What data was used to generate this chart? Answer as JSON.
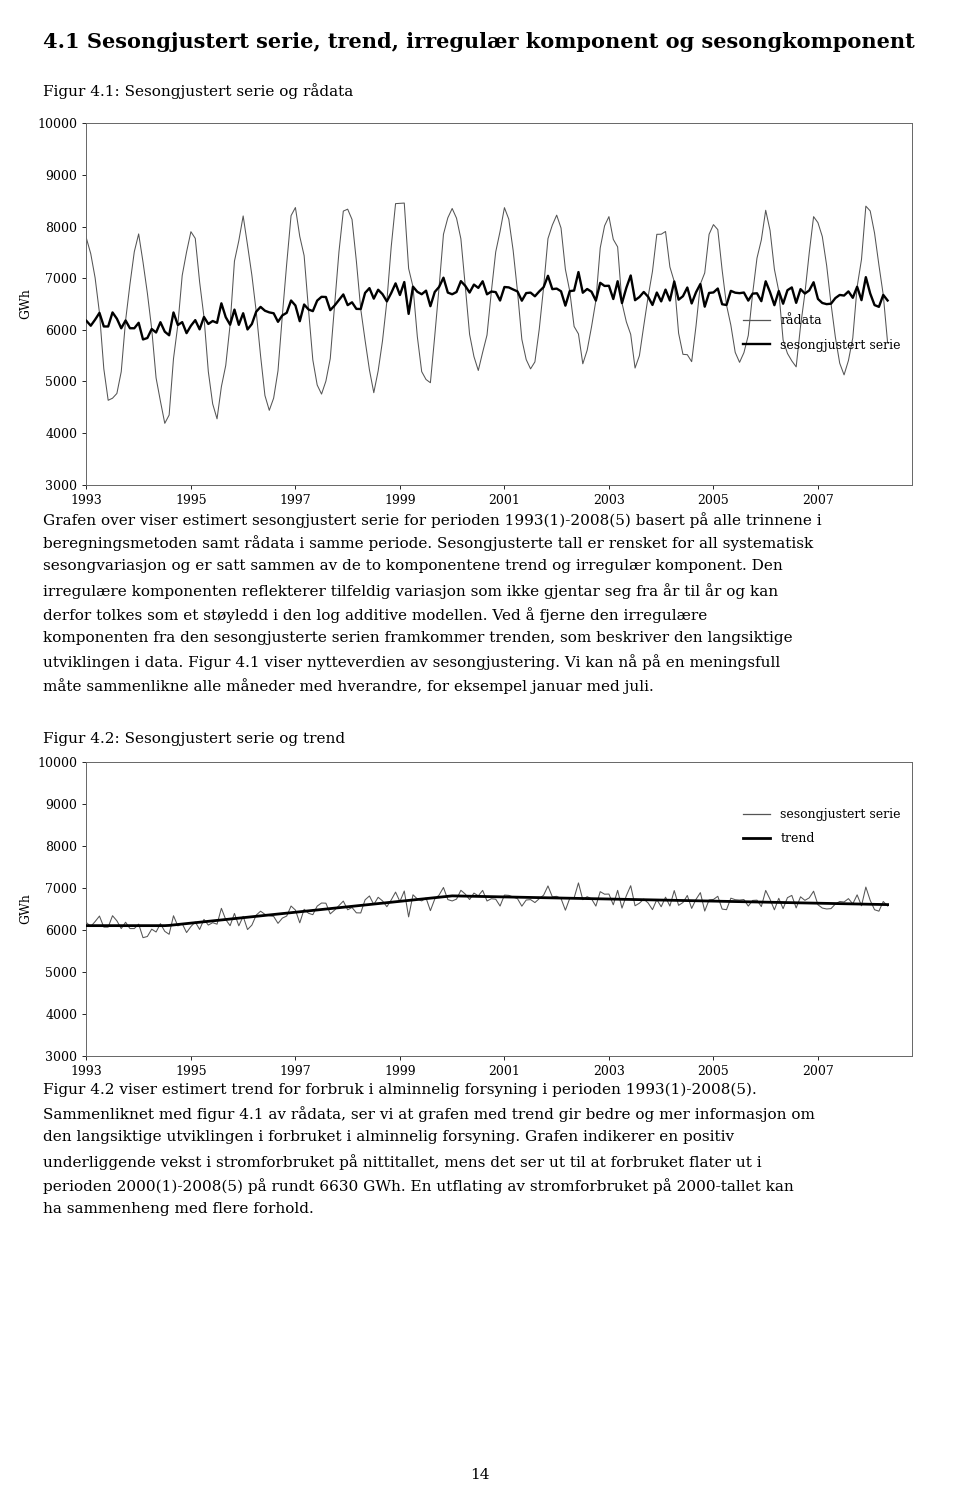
{
  "page_title": "4.1 Sesongjustert serie, trend, irregulær komponent og sesongkomponent",
  "fig1_caption": "Figur 4.1: Sesongjustert serie og rådata",
  "fig2_caption": "Figur 4.2: Sesongjustert serie og trend",
  "ylabel": "GWh",
  "xlabel_ticks": [
    1993,
    1995,
    1997,
    1999,
    2001,
    2003,
    2005,
    2007
  ],
  "ylim": [
    3000,
    10000
  ],
  "yticks": [
    3000,
    4000,
    5000,
    6000,
    7000,
    8000,
    9000,
    10000
  ],
  "legend1": [
    "rådata",
    "sesongjustert serie"
  ],
  "legend2": [
    "sesongjustert serie",
    "trend"
  ],
  "para1_lines": [
    "Grafen over viser estimert sesongjustert serie for perioden 1993(1)-2008(5) basert på alle trinnene i",
    "beregningsmetoden samt rådata i samme periode. Sesongjusterte tall er rensket for all systematisk",
    "sesongvariasjon og er satt sammen av de to komponentene trend og irregulær komponent. Den",
    "irregulære komponenten reflekterer tilfeldig variasjon som ikke gjentar seg fra år til år og kan",
    "derfor tolkes som et støyledd i den log additive modellen. Ved å fjerne den irregulære",
    "komponenten fra den sesongjusterte serien framkommer trenden, som beskriver den langsiktige",
    "utviklingen i data. Figur 4.1 viser nytteverdien av sesongjustering. Vi kan nå på en meningsfull",
    "måte sammenlikne alle måneder med hverandre, for eksempel januar med juli."
  ],
  "para2_lines": [
    "Figur 4.2 viser estimert trend for forbruk i alminnelig forsyning i perioden 1993(1)-2008(5).",
    "Sammenliknet med figur 4.1 av rådata, ser vi at grafen med trend gir bedre og mer informasjon om",
    "den langsiktige utviklingen i forbruket i alminnelig forsyning. Grafen indikerer en positiv",
    "underliggende vekst i stromforbruket på nittitallet, mens det ser ut til at forbruket flater ut i",
    "perioden 2000(1)-2008(5) på rundt 6630 GWh. En utflating av stromforbruket på 2000-tallet kan",
    "ha sammenheng med flere forhold."
  ],
  "page_number": "14",
  "bg": "#ffffff",
  "thin_color": "#555555",
  "thick_color": "#000000",
  "text_color": "#000000",
  "title_fontsize": 15,
  "caption_fontsize": 11,
  "body_fontsize": 11,
  "axis_fontsize": 9,
  "page_num_fontsize": 11
}
